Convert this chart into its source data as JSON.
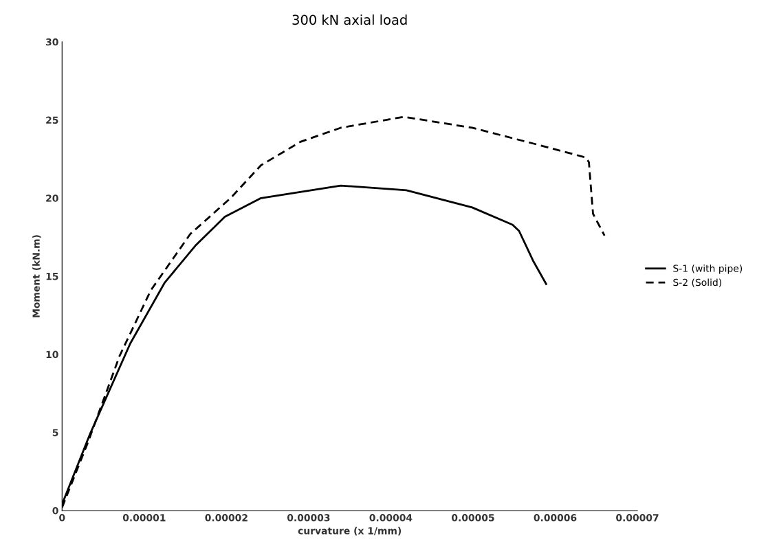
{
  "chart_data": {
    "type": "line",
    "title": "300 kN axial load",
    "xlabel": "curvature (x 1/mm)",
    "ylabel": "Moment (kN.m)",
    "xlim": [
      0,
      7e-05
    ],
    "xticks": [
      {
        "value": 0,
        "label": "0"
      },
      {
        "value": 1e-05,
        "label": "0.00001"
      },
      {
        "value": 2e-05,
        "label": "0.00002"
      },
      {
        "value": 3e-05,
        "label": "0.00003"
      },
      {
        "value": 4e-05,
        "label": "0.00004"
      },
      {
        "value": 5e-05,
        "label": "0.00005"
      },
      {
        "value": 6e-05,
        "label": "0.00006"
      },
      {
        "value": 7e-05,
        "label": "0.00007"
      }
    ],
    "ylim": [
      0,
      30
    ],
    "yticks": [
      0,
      5,
      10,
      15,
      20,
      25,
      30
    ],
    "grid": false,
    "legend": "right",
    "marker": "none",
    "series": [
      {
        "name": "S-1 (with pipe)",
        "color": "#000000",
        "line_style": "solid",
        "x": [
          0,
          3.4e-06,
          8.3e-06,
          1.25e-05,
          1.63e-05,
          1.98e-05,
          2.42e-05,
          3.39e-05,
          4.19e-05,
          4.99e-05,
          5.48e-05,
          5.56e-05,
          5.73e-05,
          5.89e-05
        ],
        "values": [
          0.4,
          4.9,
          10.7,
          14.6,
          17.0,
          18.8,
          20.0,
          20.8,
          20.5,
          19.4,
          18.3,
          17.9,
          16.0,
          14.5
        ]
      },
      {
        "name": "S-2 (Solid)",
        "color": "#000000",
        "line_style": "dashed",
        "x": [
          0,
          3.1e-06,
          7e-06,
          1.08e-05,
          1.56e-05,
          2.05e-05,
          2.42e-05,
          2.9e-05,
          3.39e-05,
          4.16e-05,
          4.99e-05,
          5.8e-05,
          6.37e-05,
          6.41e-05,
          6.46e-05,
          6.6e-05
        ],
        "values": [
          0.2,
          4.3,
          9.9,
          14.1,
          17.7,
          20.0,
          22.1,
          23.6,
          24.5,
          25.2,
          24.5,
          23.4,
          22.6,
          22.3,
          19.0,
          17.6
        ]
      }
    ]
  }
}
